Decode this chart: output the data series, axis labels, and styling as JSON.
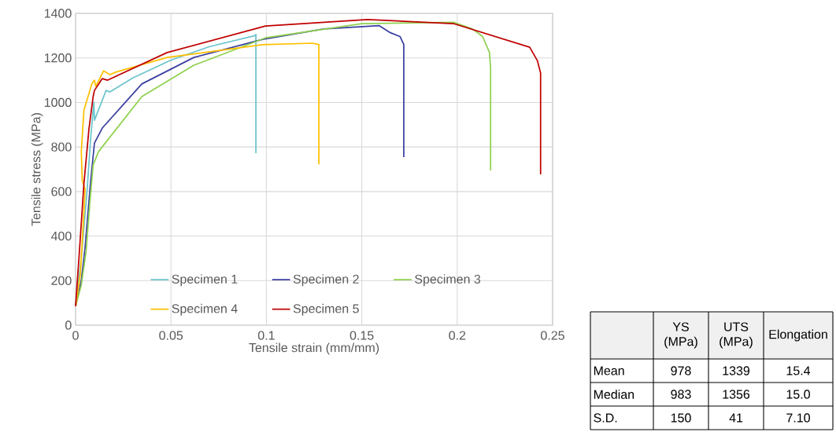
{
  "chart_data": [
    {
      "type": "line",
      "xlabel": "Tensile strain (mm/mm)",
      "ylabel": "Tensile stress (MPa)",
      "xlim": [
        0,
        0.25
      ],
      "ylim": [
        0,
        1400
      ],
      "xticks": [
        0,
        0.05,
        0.1,
        0.15,
        0.2,
        0.25
      ],
      "yticks": [
        0,
        200,
        400,
        600,
        800,
        1000,
        1200,
        1400
      ],
      "grid": true,
      "legend": "bottom",
      "marker": "none",
      "series": [
        {
          "name": "Specimen 1",
          "color": "#6cc5cc",
          "x": [
            0,
            0.003,
            0.006,
            0.008,
            0.0096,
            0.0099,
            0.016,
            0.018,
            0.03,
            0.05,
            0.07,
            0.094,
            0.0945,
            0.0945
          ],
          "values": [
            85,
            300,
            600,
            850,
            1001,
            920,
            1054,
            1047,
            1110,
            1190,
            1250,
            1300,
            1305,
            772
          ]
        },
        {
          "name": "Specimen 2",
          "color": "#3a3fa0",
          "x": [
            0,
            0.003,
            0.005,
            0.0078,
            0.0099,
            0.014,
            0.0347,
            0.062,
            0.098,
            0.13,
            0.159,
            0.165,
            0.17,
            0.172,
            0.172
          ],
          "values": [
            85,
            200,
            350,
            638,
            818,
            885,
            1083,
            1202,
            1283,
            1330,
            1345,
            1313,
            1296,
            1260,
            755
          ]
        },
        {
          "name": "Specimen 3",
          "color": "#8fd14f",
          "x": [
            0,
            0.003,
            0.0055,
            0.0075,
            0.0092,
            0.012,
            0.0347,
            0.062,
            0.0995,
            0.15,
            0.198,
            0.208,
            0.2133,
            0.2169,
            0.2175,
            0.2175
          ],
          "values": [
            85,
            180,
            330,
            550,
            719,
            779,
            1026,
            1167,
            1290,
            1354,
            1360,
            1330,
            1296,
            1225,
            1153,
            695
          ]
        },
        {
          "name": "Specimen 4",
          "color": "#ffc000",
          "x": [
            0,
            0.0025,
            0.004,
            0.005,
            0.0035,
            0.003,
            0.0044,
            0.0085,
            0.0099,
            0.0106,
            0.0147,
            0.018,
            0.021,
            0.048,
            0.098,
            0.124,
            0.1275,
            0.1275
          ],
          "values": [
            85,
            230,
            450,
            610,
            650,
            780,
            966,
            1083,
            1100,
            1072,
            1142,
            1125,
            1136,
            1202,
            1259,
            1266,
            1260,
            722
          ]
        },
        {
          "name": "Specimen 5",
          "color": "#c00000",
          "x": [
            0,
            0.002,
            0.0044,
            0.007,
            0.0092,
            0.0099,
            0.014,
            0.0168,
            0.048,
            0.0995,
            0.153,
            0.198,
            0.238,
            0.242,
            0.2437,
            0.2437
          ],
          "values": [
            85,
            330,
            638,
            880,
            1026,
            1054,
            1107,
            1100,
            1224,
            1343,
            1372,
            1354,
            1248,
            1188,
            1132,
            677
          ]
        }
      ]
    },
    {
      "type": "other",
      "categories": [
        "YS (MPa)",
        "UTS (MPa)",
        "Elongation"
      ],
      "y_categories": [
        "Mean",
        "Median",
        "S.D."
      ],
      "cell_labels": [
        [
          "978",
          "1339",
          "15.4"
        ],
        [
          "983",
          "1356",
          "15.0"
        ],
        [
          "150",
          "41",
          "7.10"
        ]
      ]
    }
  ]
}
